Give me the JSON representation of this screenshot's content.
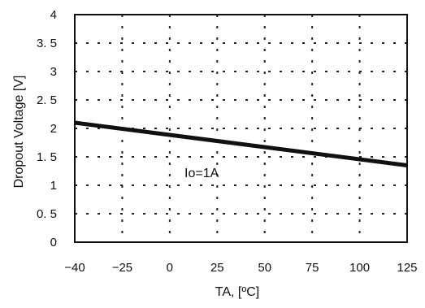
{
  "chart_data": {
    "type": "line",
    "xlabel": "TA, [ºC]",
    "ylabel": "Dropout Voltage [V]",
    "x_ticks": [
      -40,
      -25,
      0,
      25,
      50,
      75,
      100,
      125
    ],
    "x_tick_labels": [
      "−40",
      "−25",
      "0",
      "25",
      "50",
      "75",
      "100",
      "125"
    ],
    "y_ticks": [
      0,
      0.5,
      1,
      1.5,
      2,
      2.5,
      3,
      3.5,
      4
    ],
    "y_tick_labels": [
      "0",
      "0. 5",
      "1",
      "1. 5",
      "2",
      "2. 5",
      "3",
      "3. 5",
      "4"
    ],
    "xlim": [
      -40,
      125
    ],
    "ylim": [
      0,
      4
    ],
    "grid": true,
    "series": [
      {
        "x": [
          -40,
          125
        ],
        "y": [
          2.1,
          1.35
        ]
      }
    ],
    "annotations": [
      {
        "text": "Io=1A"
      }
    ]
  },
  "colors": {
    "line": "#111111",
    "grid": "#222222",
    "axis": "#111111"
  }
}
